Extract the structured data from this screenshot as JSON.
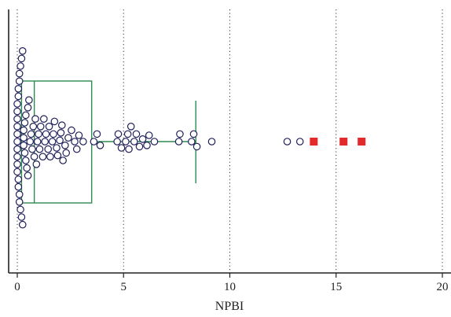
{
  "chart_data": {
    "type": "box",
    "xlabel": "NPBI",
    "xlim": [
      -0.4,
      20.5
    ],
    "xticks": [
      0,
      5,
      10,
      15,
      20
    ],
    "xtick_labels": [
      "0",
      "5",
      "10",
      "15",
      "20"
    ],
    "grid": "vertical dotted lines at major ticks",
    "box": {
      "q1": 0.2,
      "median": 0.8,
      "q3": 3.5,
      "whisker_low": 0.0,
      "whisker_high": 8.4
    },
    "points_values": [
      0.0,
      0.0,
      0.0,
      0.0,
      0.0,
      0.0,
      0.0,
      0.0,
      0.0,
      0.0,
      0.05,
      0.05,
      0.05,
      0.05,
      0.1,
      0.1,
      0.1,
      0.1,
      0.15,
      0.15,
      0.2,
      0.2,
      0.25,
      0.25,
      0.3,
      0.3,
      0.3,
      0.35,
      0.35,
      0.4,
      0.4,
      0.45,
      0.5,
      0.5,
      0.55,
      0.6,
      0.65,
      0.7,
      0.75,
      0.8,
      0.85,
      0.9,
      0.95,
      1.0,
      1.05,
      1.1,
      1.2,
      1.25,
      1.3,
      1.35,
      1.45,
      1.5,
      1.55,
      1.65,
      1.7,
      1.75,
      1.85,
      1.9,
      2.0,
      2.05,
      2.1,
      2.15,
      2.25,
      2.3,
      2.4,
      2.55,
      2.7,
      2.8,
      2.9,
      3.1,
      3.6,
      3.75,
      3.9,
      4.7,
      4.75,
      4.9,
      5.1,
      5.2,
      5.25,
      5.35,
      5.5,
      5.6,
      5.75,
      5.9,
      6.1,
      6.2,
      6.45,
      7.6,
      7.65,
      8.2,
      8.3,
      8.45,
      9.15,
      12.7,
      13.3
    ],
    "outliers": [
      13.95,
      15.35,
      16.2
    ],
    "colors": {
      "box": "#2e8b4f",
      "points_fill": "#ffffff",
      "points_stroke": "#1f1f5a",
      "outliers": "#e32a2a",
      "grid": "#333333",
      "axis": "#222222"
    }
  }
}
